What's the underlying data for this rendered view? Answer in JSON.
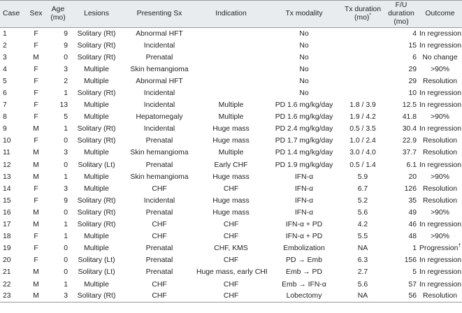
{
  "headers": [
    {
      "label": "Case"
    },
    {
      "label": "Sex"
    },
    {
      "label": "Age\n(mo)"
    },
    {
      "label": "Lesions"
    },
    {
      "label": "Presenting Sx"
    },
    {
      "label": "Indication"
    },
    {
      "label": "Tx modality"
    },
    {
      "label": "Tx duration\n(mo)*"
    },
    {
      "label": "F/U duration\n(mo)"
    },
    {
      "label": "Outcome"
    }
  ],
  "rows": [
    [
      "1",
      "F",
      "9",
      "Solitary (Rt)",
      "Abnormal HFT",
      "",
      "No",
      "",
      "4",
      "In regression"
    ],
    [
      "2",
      "F",
      "9",
      "Solitary (Rt)",
      "Incidental",
      "",
      "No",
      "",
      "15",
      "In regression"
    ],
    [
      "3",
      "M",
      "0",
      "Solitary (Rt)",
      "Prenatal",
      "",
      "No",
      "",
      "6",
      "No change"
    ],
    [
      "4",
      "F",
      "3",
      "Multiple",
      "Skin hemangioma",
      "",
      "No",
      "",
      "29",
      ">90%"
    ],
    [
      "5",
      "F",
      "2",
      "Multiple",
      "Abnormal HFT",
      "",
      "No",
      "",
      "29",
      "Resolution"
    ],
    [
      "6",
      "F",
      "1",
      "Solitary (Rt)",
      "Incidental",
      "",
      "No",
      "",
      "10",
      "In regression"
    ],
    [
      "7",
      "F",
      "13",
      "Multiple",
      "Incidental",
      "Multiple",
      "PD 1.6 mg/kg/day",
      "1.8 / 3.9",
      "12.5",
      "In regression"
    ],
    [
      "8",
      "F",
      "5",
      "Multiple",
      "Hepatomegaly",
      "Multiple",
      "PD 1.6 mg/kg/day",
      "1.9 / 4.2",
      "41.8",
      ">90%"
    ],
    [
      "9",
      "M",
      "1",
      "Solitary (Rt)",
      "Incidental",
      "Huge mass",
      "PD 2.4 mg/kg/day",
      "0.5 / 3.5",
      "30.4",
      "In regression"
    ],
    [
      "10",
      "F",
      "0",
      "Solitary (Rt)",
      "Prenatal",
      "Huge mass",
      "PD 1.7 mg/kg/day",
      "1.0 / 2.4",
      "22.9",
      "Resolution"
    ],
    [
      "11",
      "M",
      "3",
      "Multiple",
      "Skin hemangioma",
      "Multiple",
      "PD 1.4 mg/kg/day",
      "3.0 / 4.0",
      "37.7",
      "Resolution"
    ],
    [
      "12",
      "M",
      "0",
      "Solitary (Lt)",
      "Prenatal",
      "Early CHF",
      "PD 1.9 mg/kg/day",
      "0.5 / 1.4",
      "6.1",
      "In regression"
    ],
    [
      "13",
      "M",
      "1",
      "Multiple",
      "Skin hemangioma",
      "Huge mass",
      "IFN-α",
      "5.9",
      "20",
      ">90%"
    ],
    [
      "14",
      "F",
      "3",
      "Multiple",
      "CHF",
      "CHF",
      "IFN-α",
      "6.7",
      "126",
      "Resolution"
    ],
    [
      "15",
      "F",
      "9",
      "Solitary (Rt)",
      "Incidental",
      "Huge mass",
      "IFN-α",
      "5.2",
      "35",
      "Resolution"
    ],
    [
      "16",
      "M",
      "0",
      "Solitary (Rt)",
      "Prenatal",
      "Huge mass",
      "IFN-α",
      "5.6",
      "49",
      ">90%"
    ],
    [
      "17",
      "M",
      "1",
      "Solitary (Rt)",
      "CHF",
      "CHF",
      "IFN-α + PD",
      "4.2",
      "46",
      "In regression"
    ],
    [
      "18",
      "F",
      "1",
      "Multiple",
      "CHF",
      "CHF",
      "IFN-α + PD",
      "5.5",
      "48",
      ">90%"
    ],
    [
      "19",
      "F",
      "0",
      "Multiple",
      "Prenatal",
      "CHF, KMS",
      "Embolization",
      "NA",
      "1",
      "Progression†"
    ],
    [
      "20",
      "F",
      "0",
      "Solitary (Lt)",
      "Prenatal",
      "CHF",
      "PD → Emb",
      "6.3",
      "156",
      "In regression"
    ],
    [
      "21",
      "M",
      "0",
      "Solitary (Lt)",
      "Prenatal",
      "Huge mass, early CHF",
      "Emb → PD",
      "2.7",
      "5",
      "In regression"
    ],
    [
      "22",
      "M",
      "1",
      "Multiple",
      "CHF",
      "CHF",
      "Emb → IFN-α",
      "5.6",
      "57",
      "In regression"
    ],
    [
      "23",
      "M",
      "3",
      "Solitary (Rt)",
      "CHF",
      "CHF",
      "Lobectomy",
      "NA",
      "56",
      "Resolution"
    ]
  ]
}
